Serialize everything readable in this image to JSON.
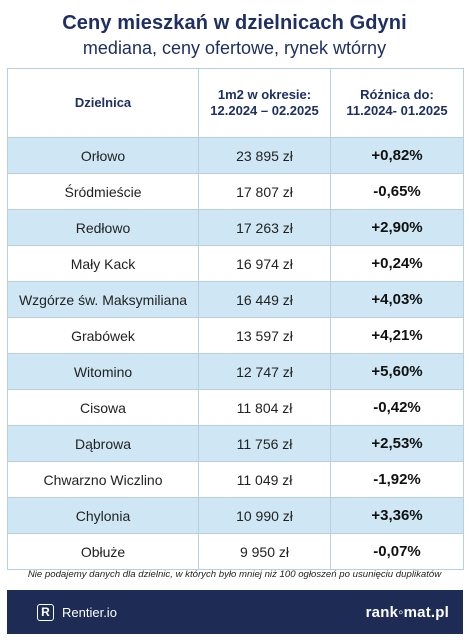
{
  "header": {
    "title": "Ceny mieszkań w dzielnicach Gdyni",
    "subtitle": "mediana, ceny ofertowe, rynek wtórny"
  },
  "table": {
    "columns": [
      {
        "line1": "Dzielnica",
        "line2": ""
      },
      {
        "line1": "1m2 w okresie:",
        "line2": "12.2024 – 02.2025"
      },
      {
        "line1": "Różnica do:",
        "line2": "11.2024- 01.2025"
      }
    ],
    "rows": [
      {
        "district": "Orłowo",
        "price": "23 895 zł",
        "diff": "+0,82%"
      },
      {
        "district": "Śródmieście",
        "price": "17 807  zł",
        "diff": "-0,65%"
      },
      {
        "district": "Redłowo",
        "price": "17 263 zł",
        "diff": "+2,90%"
      },
      {
        "district": "Mały Kack",
        "price": "16 974 zł",
        "diff": "+0,24%"
      },
      {
        "district": "Wzgórze św. Maksymiliana",
        "price": "16 449 zł",
        "diff": "+4,03%"
      },
      {
        "district": "Grabówek",
        "price": "13 597 zł",
        "diff": "+4,21%"
      },
      {
        "district": "Witomino",
        "price": "12 747 zł",
        "diff": "+5,60%"
      },
      {
        "district": "Cisowa",
        "price": "11 804 zł",
        "diff": "-0,42%"
      },
      {
        "district": "Dąbrowa",
        "price": "11 756 zł",
        "diff": "+2,53%"
      },
      {
        "district": "Chwarzno Wiczlino",
        "price": "11 049 zł",
        "diff": "-1,92%"
      },
      {
        "district": "Chylonia",
        "price": "10 990 zł",
        "diff": "+3,36%"
      },
      {
        "district": "Obłuże",
        "price": "9 950 zł",
        "diff": "-0,07%"
      }
    ]
  },
  "note": "Nie podajemy danych dla dzielnic, w których było mniej niż 100 ogłoszeń po usunięciu duplikatów",
  "footer": {
    "left_logo_letter": "R",
    "left_brand": "Rentier.io",
    "right_brand": "rank◦mat.pl"
  },
  "colors": {
    "title": "#1e2f63",
    "row_shade": "#cfe7f4",
    "border": "#b9cfe0",
    "footer_bg": "#1d2b55"
  }
}
